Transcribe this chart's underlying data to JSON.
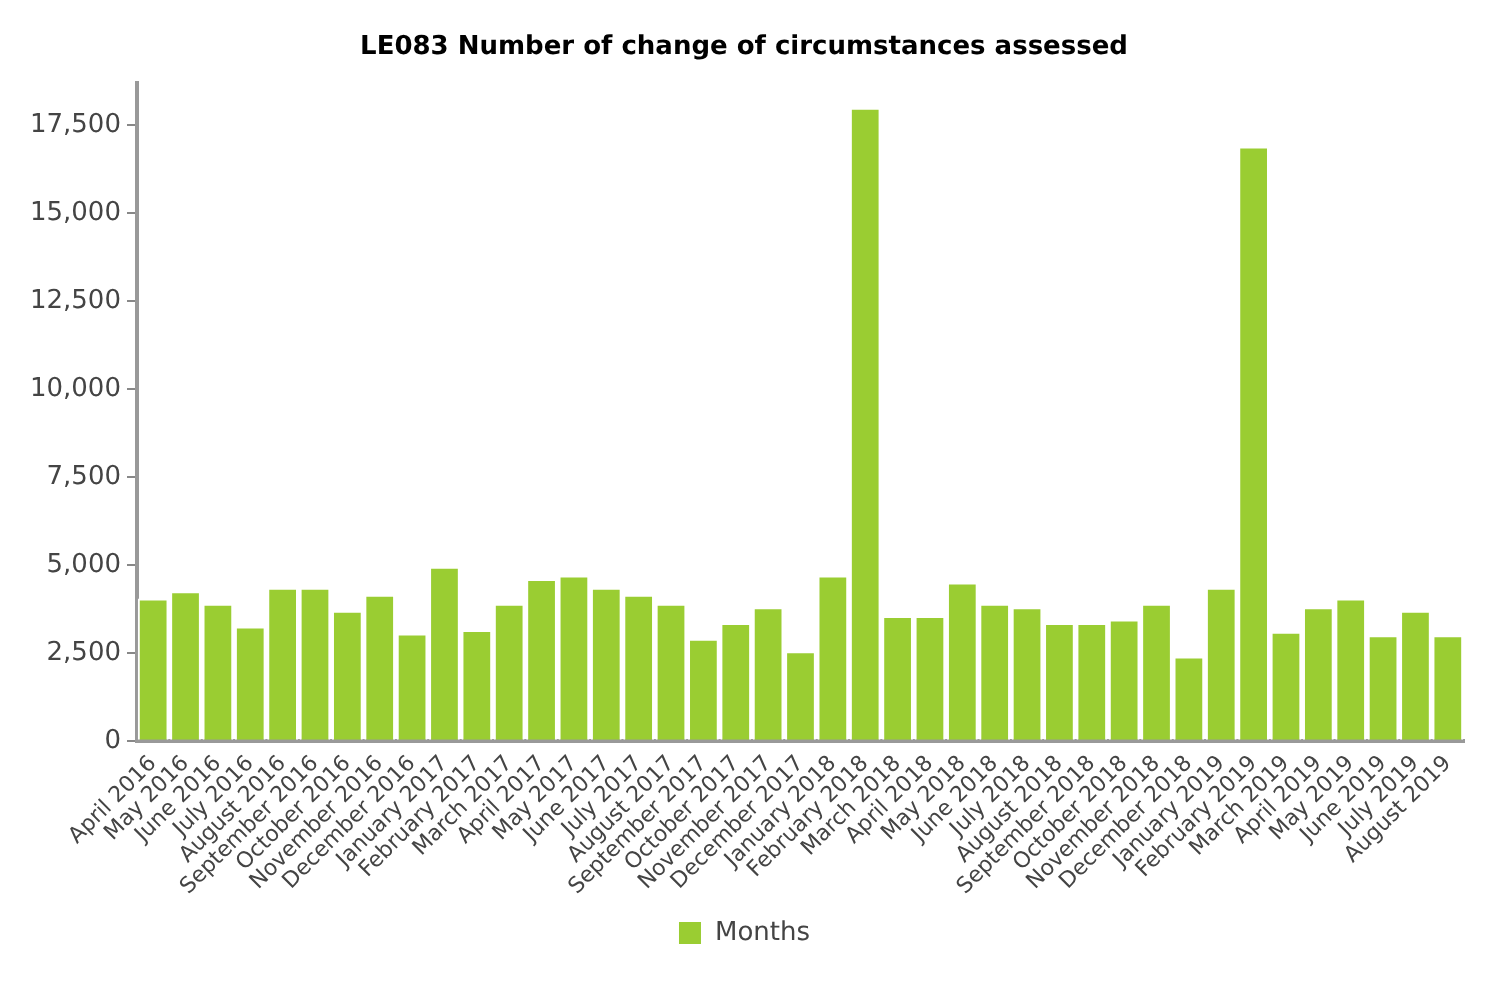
{
  "chart_data": {
    "type": "bar",
    "title": "LE083 Number of change of circumstances assessed",
    "categories": [
      "April 2016",
      "May 2016",
      "June 2016",
      "July 2016",
      "August 2016",
      "September 2016",
      "October 2016",
      "November 2016",
      "December 2016",
      "January 2017",
      "February 2017",
      "March 2017",
      "April 2017",
      "May 2017",
      "June 2017",
      "July 2017",
      "August 2017",
      "September 2017",
      "October 2017",
      "November 2017",
      "December 2017",
      "January 2018",
      "February 2018",
      "March 2018",
      "April 2018",
      "May 2018",
      "June 2018",
      "July 2018",
      "August 2018",
      "September 2018",
      "October 2018",
      "November 2018",
      "December 2018",
      "January 2019",
      "February 2019",
      "March 2019",
      "April 2019",
      "May 2019",
      "June 2019",
      "July 2019",
      "August 2019"
    ],
    "series": [
      {
        "name": "Months",
        "color": "#9acd32",
        "values": [
          4050,
          4250,
          3900,
          3250,
          4350,
          4350,
          3700,
          4150,
          3050,
          4950,
          3150,
          3900,
          4600,
          4700,
          4350,
          4150,
          3900,
          2900,
          3350,
          3800,
          2550,
          4700,
          18000,
          3550,
          3550,
          4500,
          3900,
          3800,
          3350,
          3350,
          3450,
          3900,
          2400,
          4350,
          16900,
          3100,
          3800,
          4050,
          3000,
          3700,
          3000
        ]
      }
    ],
    "ylim": [
      0,
      18700
    ],
    "yticks": [
      0,
      {
        "value": 2500,
        "label": "2,500"
      },
      {
        "value": 5000,
        "label": "5,000"
      },
      {
        "value": 7500,
        "label": "7,500"
      },
      {
        "value": 10000,
        "label": "10,000"
      },
      {
        "value": 12500,
        "label": "12,500"
      },
      {
        "value": 15000,
        "label": "15,000"
      },
      {
        "value": 17500,
        "label": "17,500"
      }
    ],
    "grid": false,
    "legend": "bottom"
  }
}
